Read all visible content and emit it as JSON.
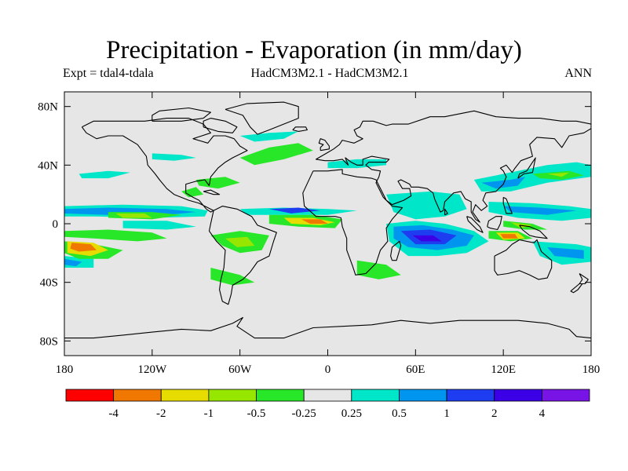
{
  "header": {
    "title": "Precipitation - Evaporation (in mm/day)",
    "left": "Expt = tdal4-tdala",
    "center": "HadCM3M2.1 - HadCM3M2.1",
    "right": "ANN"
  },
  "map": {
    "projection": "cylindrical equidistant",
    "lon_range": [
      -180,
      180
    ],
    "lat_range": [
      -90,
      90
    ],
    "background_color": "#e6e6e6",
    "coastline_color": "#000000",
    "lat_ticks": [
      {
        "value": 80,
        "label": "80N"
      },
      {
        "value": 40,
        "label": "40N"
      },
      {
        "value": 0,
        "label": "0"
      },
      {
        "value": -40,
        "label": "40S"
      },
      {
        "value": -80,
        "label": "80S"
      }
    ],
    "lon_ticks": [
      {
        "value": -180,
        "label": "180"
      },
      {
        "value": -120,
        "label": "120W"
      },
      {
        "value": -60,
        "label": "60W"
      },
      {
        "value": 0,
        "label": "0"
      },
      {
        "value": 60,
        "label": "60E"
      },
      {
        "value": 120,
        "label": "120E"
      },
      {
        "value": 180,
        "label": "180"
      }
    ]
  },
  "colorbar": {
    "colors": [
      "#ff0000",
      "#f07800",
      "#e6dc00",
      "#96e600",
      "#28e628",
      "#e6e6e6",
      "#00e6c8",
      "#0096f0",
      "#1e3cf0",
      "#3c00e6",
      "#7814e6"
    ],
    "labels": [
      "-4",
      "-2",
      "-1",
      "-0.5",
      "-0.25",
      "0.25",
      "0.5",
      "1",
      "2",
      "4"
    ]
  }
}
